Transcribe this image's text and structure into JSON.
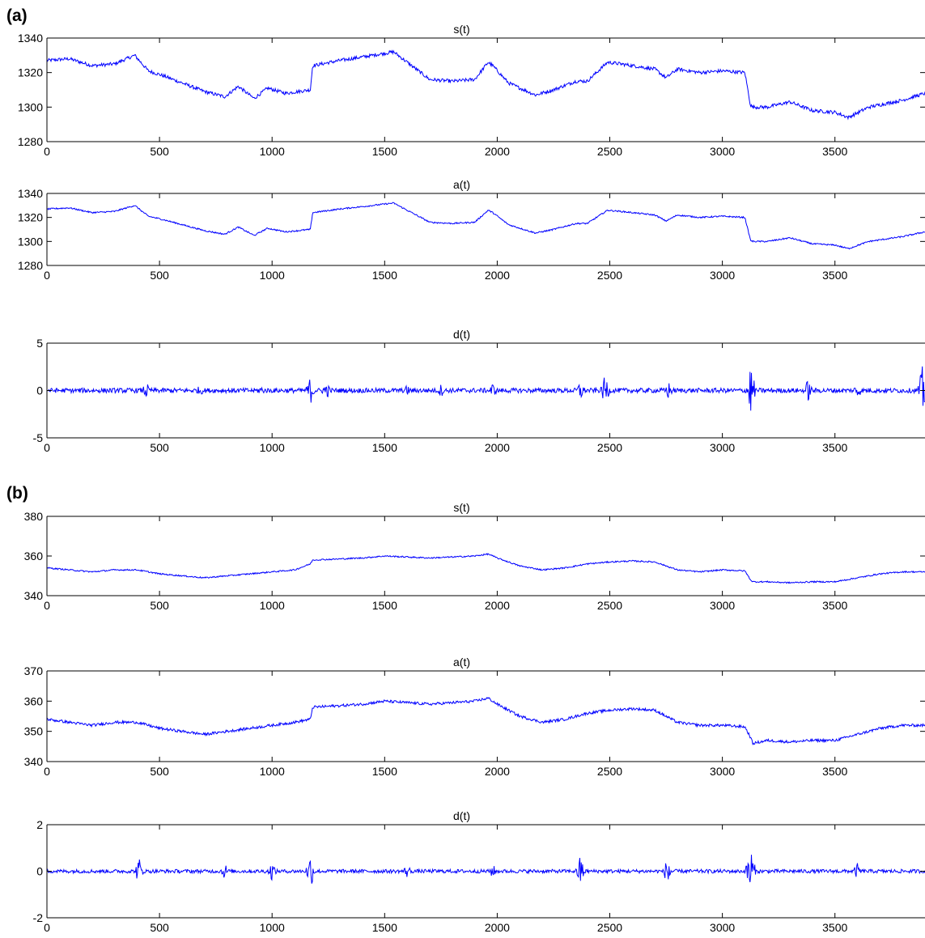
{
  "figure": {
    "panel_labels": [
      "(a)",
      "(b)"
    ],
    "line_color": "#0000ff"
  },
  "chart_data": [
    {
      "type": "line",
      "panel": "(a)",
      "title": "s(t)",
      "xlim": [
        0,
        3900
      ],
      "ylim": [
        1280,
        1340
      ],
      "xticks": [
        0,
        500,
        1000,
        1500,
        2000,
        2500,
        3000,
        3500
      ],
      "yticks": [
        1280,
        1300,
        1320,
        1340
      ],
      "grid": false,
      "series": [
        {
          "anchors_x": [
            0,
            100,
            200,
            300,
            390,
            410,
            450,
            520,
            600,
            700,
            790,
            850,
            920,
            980,
            1060,
            1170,
            1180,
            1300,
            1400,
            1540,
            1620,
            1700,
            1800,
            1900,
            1960,
            1980,
            2050,
            2170,
            2250,
            2350,
            2400,
            2490,
            2550,
            2700,
            2750,
            2800,
            2900,
            3000,
            3100,
            3125,
            3135,
            3200,
            3300,
            3400,
            3500,
            3560,
            3650,
            3800,
            3900
          ],
          "anchors_y": [
            1327,
            1328,
            1324,
            1325,
            1330,
            1327,
            1321,
            1318,
            1314,
            1309,
            1306,
            1312,
            1305,
            1311,
            1308,
            1310,
            1324,
            1327,
            1329,
            1332,
            1324,
            1316,
            1315,
            1316,
            1326,
            1324,
            1314,
            1307,
            1310,
            1315,
            1315,
            1326,
            1325,
            1322,
            1317,
            1322,
            1320,
            1321,
            1320,
            1301,
            1300,
            1300,
            1303,
            1298,
            1297,
            1294,
            1300,
            1304,
            1308
          ],
          "noise_amplitude": 1.0
        }
      ]
    },
    {
      "type": "line",
      "panel": "(a)",
      "title": "a(t)",
      "xlim": [
        0,
        3900
      ],
      "ylim": [
        1280,
        1340
      ],
      "xticks": [
        0,
        500,
        1000,
        1500,
        2000,
        2500,
        3000,
        3500
      ],
      "yticks": [
        1280,
        1300,
        1320,
        1340
      ],
      "grid": false,
      "series": [
        {
          "anchors_x": [
            0,
            100,
            200,
            300,
            390,
            410,
            450,
            520,
            600,
            700,
            790,
            850,
            920,
            980,
            1060,
            1170,
            1180,
            1300,
            1400,
            1540,
            1620,
            1700,
            1800,
            1900,
            1960,
            1980,
            2050,
            2170,
            2250,
            2350,
            2400,
            2490,
            2550,
            2700,
            2750,
            2800,
            2900,
            3000,
            3100,
            3125,
            3135,
            3200,
            3300,
            3400,
            3500,
            3560,
            3650,
            3800,
            3900
          ],
          "anchors_y": [
            1327,
            1328,
            1324,
            1325,
            1330,
            1327,
            1321,
            1318,
            1314,
            1309,
            1306,
            1312,
            1305,
            1311,
            1308,
            1310,
            1324,
            1327,
            1329,
            1332,
            1324,
            1316,
            1315,
            1316,
            1326,
            1324,
            1314,
            1307,
            1310,
            1315,
            1315,
            1326,
            1325,
            1322,
            1317,
            1322,
            1320,
            1321,
            1320,
            1301,
            1300,
            1300,
            1303,
            1298,
            1297,
            1294,
            1300,
            1304,
            1308
          ],
          "noise_amplitude": 0.6
        }
      ]
    },
    {
      "type": "line",
      "panel": "(a)",
      "title": "d(t)",
      "xlim": [
        0,
        3900
      ],
      "ylim": [
        -5,
        5
      ],
      "xticks": [
        0,
        500,
        1000,
        1500,
        2000,
        2500,
        3000,
        3500
      ],
      "yticks": [
        -5,
        0,
        5
      ],
      "grid": false,
      "series": [
        {
          "baseline_amplitude": 0.25,
          "bursts": [
            {
              "x": 440,
              "amp": 0.9
            },
            {
              "x": 680,
              "amp": 0.6
            },
            {
              "x": 950,
              "amp": 0.6
            },
            {
              "x": 1170,
              "amp": 1.5
            },
            {
              "x": 1240,
              "amp": 1.0
            },
            {
              "x": 1600,
              "amp": 0.6
            },
            {
              "x": 1750,
              "amp": 0.7
            },
            {
              "x": 1980,
              "amp": 0.8
            },
            {
              "x": 2370,
              "amp": 1.1
            },
            {
              "x": 2480,
              "amp": 1.7
            },
            {
              "x": 2760,
              "amp": 1.0
            },
            {
              "x": 3125,
              "amp": 3.0
            },
            {
              "x": 3380,
              "amp": 1.2
            },
            {
              "x": 3600,
              "amp": 0.9
            },
            {
              "x": 3890,
              "amp": 2.8
            }
          ]
        }
      ]
    },
    {
      "type": "line",
      "panel": "(b)",
      "title": "s(t)",
      "xlim": [
        0,
        3900
      ],
      "ylim": [
        340,
        380
      ],
      "xticks": [
        0,
        500,
        1000,
        1500,
        2000,
        2500,
        3000,
        3500
      ],
      "yticks": [
        340,
        360,
        380
      ],
      "grid": false,
      "series": [
        {
          "anchors_x": [
            0,
            100,
            200,
            300,
            400,
            500,
            600,
            700,
            800,
            900,
            1000,
            1100,
            1170,
            1180,
            1300,
            1400,
            1500,
            1600,
            1700,
            1800,
            1900,
            1960,
            2000,
            2100,
            2200,
            2300,
            2400,
            2500,
            2600,
            2700,
            2750,
            2800,
            2900,
            3000,
            3100,
            3125,
            3135,
            3200,
            3300,
            3400,
            3500,
            3600,
            3700,
            3800,
            3900
          ],
          "anchors_y": [
            354,
            353,
            352,
            353,
            353,
            351,
            350,
            349,
            350,
            351,
            352,
            353,
            356,
            358,
            358.5,
            359,
            360,
            359.5,
            359,
            359.5,
            360,
            361,
            359,
            355,
            353,
            354,
            356,
            357,
            357.5,
            357,
            355,
            353,
            352,
            353,
            352.5,
            348,
            347,
            347,
            346.5,
            347,
            347,
            349,
            351,
            352,
            352
          ],
          "noise_amplitude": 0.35
        }
      ]
    },
    {
      "type": "line",
      "panel": "(b)",
      "title": "a(t)",
      "xlim": [
        0,
        3900
      ],
      "ylim": [
        340,
        370
      ],
      "xticks": [
        0,
        500,
        1000,
        1500,
        2000,
        2500,
        3000,
        3500
      ],
      "yticks": [
        340,
        350,
        360,
        370
      ],
      "grid": false,
      "series": [
        {
          "anchors_x": [
            0,
            100,
            200,
            300,
            400,
            500,
            600,
            700,
            800,
            900,
            1000,
            1100,
            1170,
            1180,
            1300,
            1400,
            1500,
            1600,
            1700,
            1800,
            1900,
            1960,
            2000,
            2100,
            2200,
            2300,
            2400,
            2500,
            2600,
            2700,
            2750,
            2800,
            2900,
            3000,
            3100,
            3125,
            3135,
            3200,
            3300,
            3400,
            3500,
            3600,
            3700,
            3800,
            3900
          ],
          "anchors_y": [
            354,
            353,
            352,
            353,
            353,
            351,
            350,
            349,
            350,
            351,
            352,
            353,
            354,
            358,
            358.5,
            359,
            360,
            359.5,
            359,
            359.5,
            360,
            361,
            359,
            355,
            353,
            354,
            356,
            357,
            357.5,
            357,
            355,
            353,
            352,
            352,
            351.5,
            348,
            346,
            347,
            346.5,
            347,
            347,
            349,
            351,
            352,
            352
          ],
          "noise_amplitude": 0.45
        }
      ]
    },
    {
      "type": "line",
      "panel": "(b)",
      "title": "d(t)",
      "xlim": [
        0,
        3900
      ],
      "ylim": [
        -2,
        2
      ],
      "xticks": [
        0,
        500,
        1000,
        1500,
        2000,
        2500,
        3000,
        3500
      ],
      "yticks": [
        -2,
        0,
        2
      ],
      "grid": false,
      "series": [
        {
          "baseline_amplitude": 0.08,
          "bursts": [
            {
              "x": 410,
              "amp": 0.6
            },
            {
              "x": 790,
              "amp": 0.35
            },
            {
              "x": 1000,
              "amp": 0.4
            },
            {
              "x": 1170,
              "amp": 0.75
            },
            {
              "x": 1600,
              "amp": 0.3
            },
            {
              "x": 1980,
              "amp": 0.3
            },
            {
              "x": 2370,
              "amp": 0.7
            },
            {
              "x": 2760,
              "amp": 0.75
            },
            {
              "x": 3125,
              "amp": 1.2
            },
            {
              "x": 3600,
              "amp": 0.35
            }
          ]
        }
      ]
    }
  ]
}
